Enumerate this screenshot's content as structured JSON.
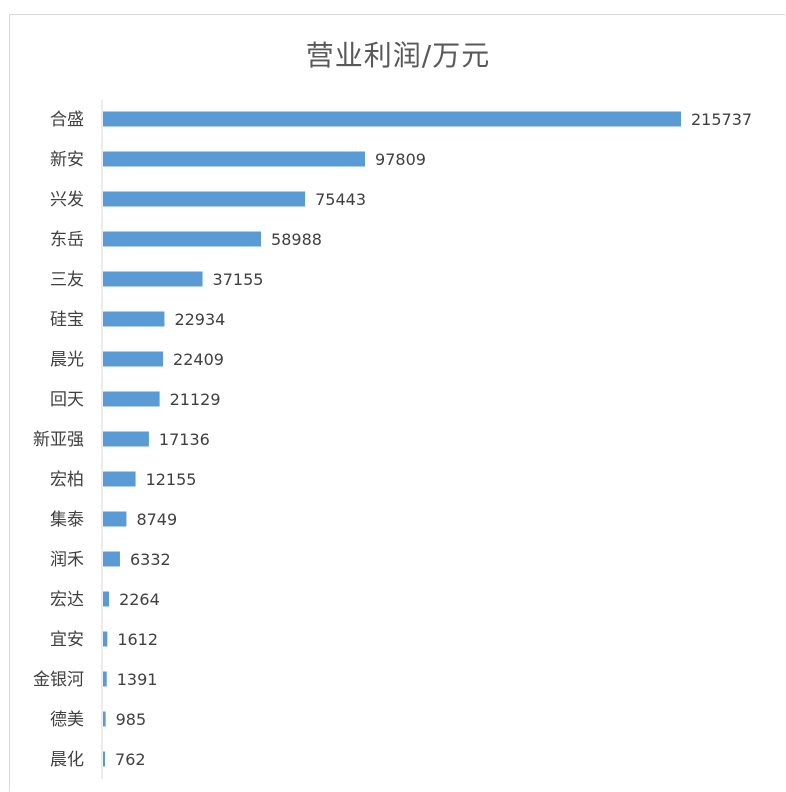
{
  "chart_data": {
    "type": "bar",
    "orientation": "horizontal",
    "title": "营业利润/万元",
    "categories": [
      "合盛",
      "新安",
      "兴发",
      "东岳",
      "三友",
      "硅宝",
      "晨光",
      "回天",
      "新亚强",
      "宏柏",
      "集泰",
      "润禾",
      "宏达",
      "宜安",
      "金银河",
      "德美",
      "晨化"
    ],
    "values": [
      215737,
      97809,
      75443,
      58988,
      37155,
      22934,
      22409,
      21129,
      17136,
      12155,
      8749,
      6332,
      2264,
      1612,
      1391,
      985,
      762
    ],
    "xlabel": "",
    "ylabel": "",
    "xlim": [
      0,
      240000
    ],
    "grid": false,
    "legend": "none",
    "bar_color": "#5b9bd5",
    "data_labels": true
  }
}
